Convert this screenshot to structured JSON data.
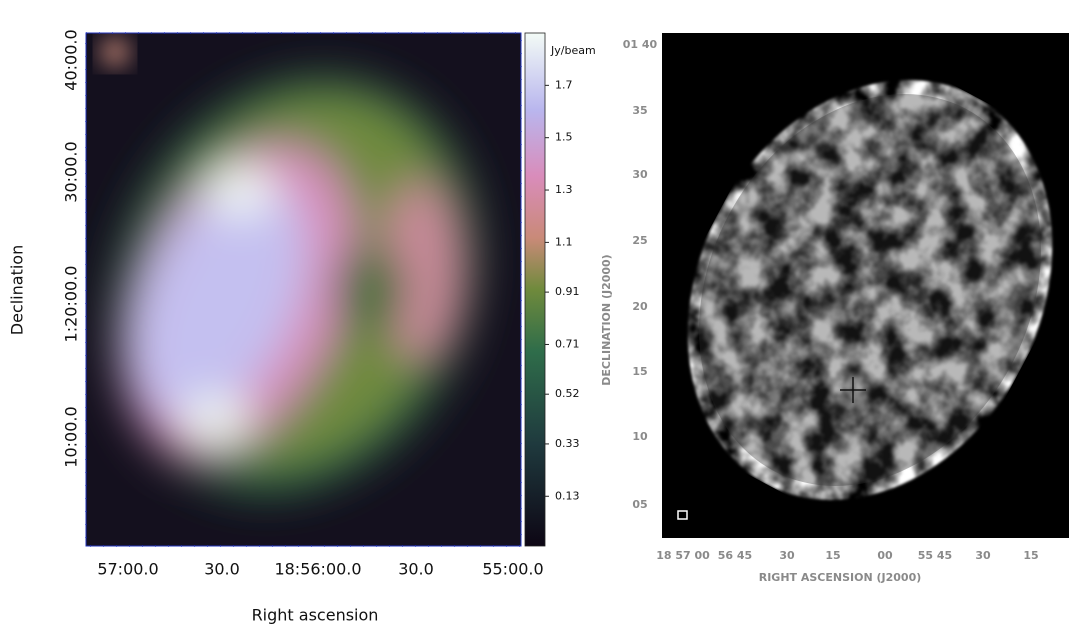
{
  "left_panel": {
    "xlabel": "Right ascension",
    "ylabel": "Declination",
    "xtick_labels": [
      "57:00.0",
      "30.0",
      "18:56:00.0",
      "30.0",
      "55:00.0"
    ],
    "ytick_labels": [
      "40:00.0",
      "30:00.0",
      "1:20:00.0",
      "10:00.0"
    ],
    "colorbar": {
      "unit": "Jy/beam",
      "clim": [
        -0.06,
        1.9
      ],
      "ticks": [
        0.13,
        0.33,
        0.52,
        0.71,
        0.91,
        1.1,
        1.3,
        1.5,
        1.7
      ]
    }
  },
  "right_panel": {
    "xlabel": "RIGHT ASCENSION (J2000)",
    "ylabel": "DECLINATION (J2000)",
    "xtick_labels": [
      "18 57 00",
      "56 45",
      "30",
      "15",
      "00",
      "55 45",
      "30",
      "15"
    ],
    "ytick_labels": [
      "01 40",
      "35",
      "30",
      "25",
      "20",
      "15",
      "10",
      "05"
    ]
  }
}
